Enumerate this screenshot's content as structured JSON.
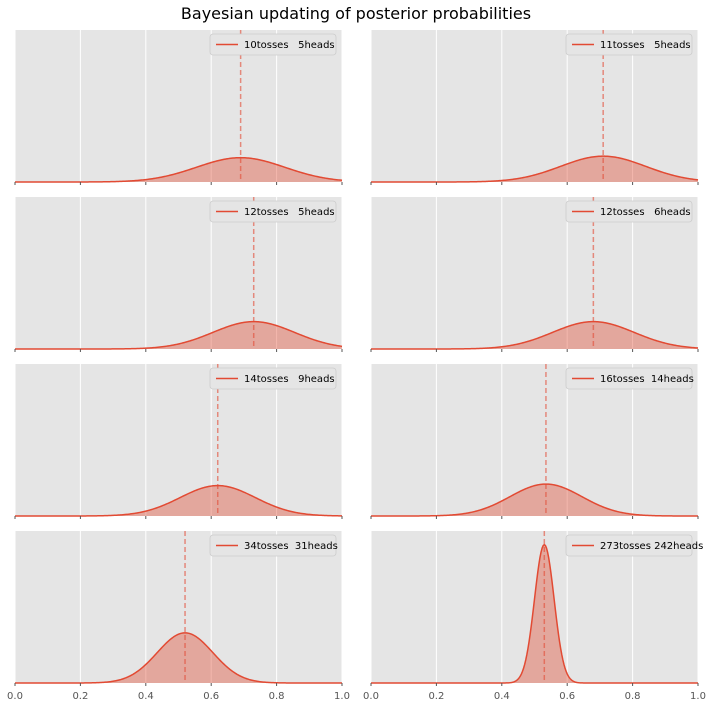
{
  "title": "Bayesian updating of posterior probabilities",
  "colors": {
    "background": "#e5e5e5",
    "grid": "#ffffff",
    "curve": "#e24a33",
    "fill": "#e24a33",
    "legend_bg": "#e5e5e5"
  },
  "chart_data": {
    "type": "area",
    "layout": "4x2 grid of subplots, shared x-axis",
    "xlim": [
      0.0,
      1.0
    ],
    "x_ticks": [
      "0.0",
      "0.2",
      "0.4",
      "0.6",
      "0.8",
      "1.0"
    ],
    "grid": true,
    "legend_position": "top-right",
    "panels": [
      {
        "legend": "10tosses   5heads",
        "true_p_line": 0.69,
        "peak": 0.69,
        "spread": 0.135,
        "peak_height": 0.16,
        "ylim_max": 1.0
      },
      {
        "legend": "11tosses   5heads",
        "true_p_line": 0.71,
        "peak": 0.71,
        "spread": 0.13,
        "peak_height": 0.17,
        "ylim_max": 1.0
      },
      {
        "legend": "12tosses   5heads",
        "true_p_line": 0.73,
        "peak": 0.73,
        "spread": 0.125,
        "peak_height": 0.18,
        "ylim_max": 1.0
      },
      {
        "legend": "12tosses   6heads",
        "true_p_line": 0.68,
        "peak": 0.68,
        "spread": 0.125,
        "peak_height": 0.18,
        "ylim_max": 1.0
      },
      {
        "legend": "14tosses   9heads",
        "true_p_line": 0.62,
        "peak": 0.62,
        "spread": 0.115,
        "peak_height": 0.2,
        "ylim_max": 1.0
      },
      {
        "legend": "16tosses  14heads",
        "true_p_line": 0.535,
        "peak": 0.535,
        "spread": 0.11,
        "peak_height": 0.21,
        "ylim_max": 1.0
      },
      {
        "legend": "34tosses  31heads",
        "true_p_line": 0.52,
        "peak": 0.52,
        "spread": 0.085,
        "peak_height": 0.33,
        "ylim_max": 1.0
      },
      {
        "legend": "273tosses 242heads",
        "true_p_line": 0.53,
        "peak": 0.53,
        "spread": 0.03,
        "peak_height": 0.91,
        "ylim_max": 1.0
      }
    ]
  }
}
